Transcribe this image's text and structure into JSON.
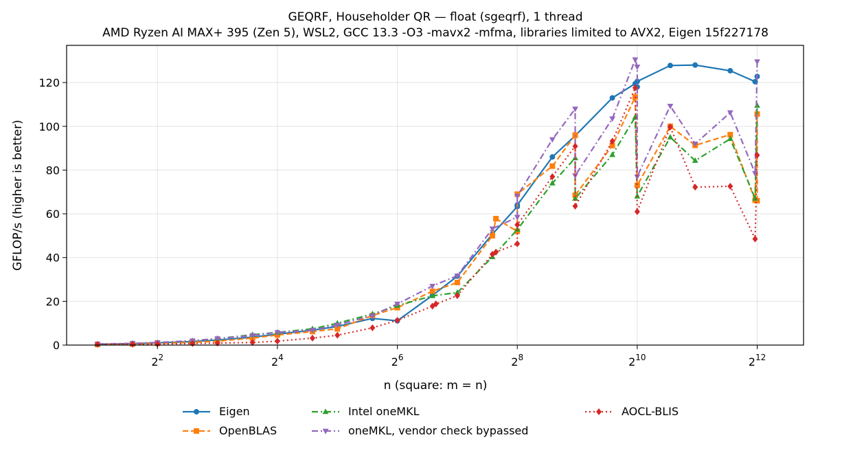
{
  "chart_data": {
    "type": "line",
    "title": "GEQRF, Householder QR — float (sgeqrf), 1 thread",
    "subtitle": "AMD Ryzen AI MAX+ 395 (Zen 5), WSL2, GCC 13.3 -O3 -mavx2 -mfma, libraries limited to AVX2, Eigen 15f227178",
    "xlabel": "n (square: m = n)",
    "ylabel": "GFLOP/s (higher is better)",
    "x_scale": "log2",
    "xlim": [
      1.4,
      7000
    ],
    "ylim": [
      0,
      137
    ],
    "x_ticks": [
      4,
      16,
      64,
      256,
      1024,
      4096
    ],
    "x_tick_labels": [
      [
        "2",
        "2"
      ],
      [
        "2",
        "4"
      ],
      [
        "2",
        "6"
      ],
      [
        "2",
        "8"
      ],
      [
        "2",
        "10"
      ],
      [
        "2",
        "12"
      ]
    ],
    "y_ticks": [
      0,
      20,
      40,
      60,
      80,
      100,
      120
    ],
    "y_tick_labels": [
      "0",
      "20",
      "40",
      "60",
      "80",
      "100",
      "120"
    ],
    "grid": true,
    "legend_position": "below",
    "series": [
      {
        "name": "Eigen",
        "color": "#1f77b4",
        "marker": "circle",
        "dash": "solid",
        "points": [
          [
            2,
            0.4
          ],
          [
            3,
            0.7
          ],
          [
            4,
            1.0
          ],
          [
            6,
            1.6
          ],
          [
            8,
            2.3
          ],
          [
            12,
            3.6
          ],
          [
            16,
            5.0
          ],
          [
            24,
            6.8
          ],
          [
            32,
            8.5
          ],
          [
            48,
            12.2
          ],
          [
            64,
            11.1
          ],
          [
            96,
            22.7
          ],
          [
            128,
            31.5
          ],
          [
            192,
            50.7
          ],
          [
            256,
            63.3
          ],
          [
            256,
            64.0
          ],
          [
            384,
            86.0
          ],
          [
            500,
            95.7
          ],
          [
            768,
            113.0
          ],
          [
            1000,
            119.5
          ],
          [
            1024,
            118.0
          ],
          [
            1024,
            120.5
          ],
          [
            1500,
            127.8
          ],
          [
            2000,
            128.0
          ],
          [
            3000,
            125.4
          ],
          [
            4000,
            120.4
          ],
          [
            4096,
            122.8
          ]
        ]
      },
      {
        "name": "OpenBLAS",
        "color": "#ff7f0e",
        "marker": "square",
        "dash": "dashed",
        "points": [
          [
            2,
            0.3
          ],
          [
            3,
            0.5
          ],
          [
            4,
            0.8
          ],
          [
            6,
            1.3
          ],
          [
            8,
            1.8
          ],
          [
            12,
            3.2
          ],
          [
            16,
            4.6
          ],
          [
            24,
            6.2
          ],
          [
            32,
            7.4
          ],
          [
            48,
            13.5
          ],
          [
            64,
            17.1
          ],
          [
            96,
            24.6
          ],
          [
            128,
            28.6
          ],
          [
            192,
            50.0
          ],
          [
            200,
            57.8
          ],
          [
            256,
            52.0
          ],
          [
            256,
            69.0
          ],
          [
            384,
            81.8
          ],
          [
            500,
            96.0
          ],
          [
            500,
            68.5
          ],
          [
            768,
            91.2
          ],
          [
            1000,
            113.4
          ],
          [
            1024,
            73.0
          ],
          [
            1500,
            100.0
          ],
          [
            2000,
            91.3
          ],
          [
            3000,
            96.2
          ],
          [
            4000,
            66.2
          ],
          [
            4096,
            105.6
          ],
          [
            4096,
            66.0
          ]
        ]
      },
      {
        "name": "Intel oneMKL",
        "color": "#2ca02c",
        "marker": "triangle-up",
        "dash": "dashdot",
        "points": [
          [
            2,
            0.4
          ],
          [
            3,
            0.7
          ],
          [
            4,
            1.1
          ],
          [
            6,
            1.9
          ],
          [
            8,
            3.0
          ],
          [
            12,
            4.7
          ],
          [
            16,
            5.8
          ],
          [
            24,
            7.4
          ],
          [
            32,
            10.0
          ],
          [
            48,
            14.2
          ],
          [
            64,
            18.0
          ],
          [
            96,
            22.5
          ],
          [
            128,
            24.0
          ],
          [
            192,
            40.3
          ],
          [
            256,
            52.8
          ],
          [
            384,
            74.0
          ],
          [
            500,
            85.5
          ],
          [
            500,
            67.0
          ],
          [
            768,
            87.0
          ],
          [
            1000,
            104.2
          ],
          [
            1024,
            68.0
          ],
          [
            1500,
            95.0
          ],
          [
            2000,
            84.3
          ],
          [
            3000,
            94.3
          ],
          [
            4000,
            67.0
          ],
          [
            4096,
            109.5
          ]
        ]
      },
      {
        "name": "oneMKL, vendor check bypassed",
        "color": "#9467bd",
        "marker": "triangle-down",
        "dash": "dashdot",
        "points": [
          [
            2,
            0.5
          ],
          [
            3,
            0.8
          ],
          [
            4,
            1.2
          ],
          [
            6,
            2.0
          ],
          [
            8,
            3.0
          ],
          [
            12,
            4.4
          ],
          [
            16,
            5.8
          ],
          [
            24,
            6.8
          ],
          [
            32,
            9.2
          ],
          [
            48,
            13.5
          ],
          [
            64,
            18.8
          ],
          [
            96,
            27.0
          ],
          [
            128,
            31.7
          ],
          [
            192,
            53.2
          ],
          [
            256,
            58.5
          ],
          [
            256,
            68.2
          ],
          [
            384,
            94.0
          ],
          [
            500,
            108.0
          ],
          [
            500,
            77.5
          ],
          [
            768,
            103.5
          ],
          [
            1000,
            130.5
          ],
          [
            1024,
            127.2
          ],
          [
            1024,
            77.0
          ],
          [
            1500,
            109.3
          ],
          [
            2000,
            92.0
          ],
          [
            3000,
            106.3
          ],
          [
            4000,
            78.5
          ],
          [
            4096,
            129.6
          ]
        ]
      },
      {
        "name": "AOCL-BLIS",
        "color": "#d62728",
        "marker": "diamond",
        "dash": "dotted",
        "points": [
          [
            2,
            0.3
          ],
          [
            3,
            0.4
          ],
          [
            4,
            0.5
          ],
          [
            6,
            0.7
          ],
          [
            8,
            0.9
          ],
          [
            12,
            1.2
          ],
          [
            16,
            1.8
          ],
          [
            24,
            3.2
          ],
          [
            32,
            4.5
          ],
          [
            48,
            7.9
          ],
          [
            64,
            11.3
          ],
          [
            96,
            17.8
          ],
          [
            100,
            18.8
          ],
          [
            128,
            22.6
          ],
          [
            192,
            41.5
          ],
          [
            200,
            42.5
          ],
          [
            256,
            46.3
          ],
          [
            256,
            55.0
          ],
          [
            384,
            77.0
          ],
          [
            500,
            90.9
          ],
          [
            500,
            63.5
          ],
          [
            768,
            93.2
          ],
          [
            1000,
            117.6
          ],
          [
            1024,
            61.0
          ],
          [
            1500,
            99.7
          ],
          [
            2000,
            72.2
          ],
          [
            3000,
            72.6
          ],
          [
            4000,
            48.5
          ],
          [
            4096,
            86.8
          ]
        ]
      }
    ]
  },
  "legend": {
    "items": [
      "Eigen",
      "OpenBLAS",
      "Intel oneMKL",
      "oneMKL, vendor check bypassed",
      "AOCL-BLIS"
    ]
  }
}
